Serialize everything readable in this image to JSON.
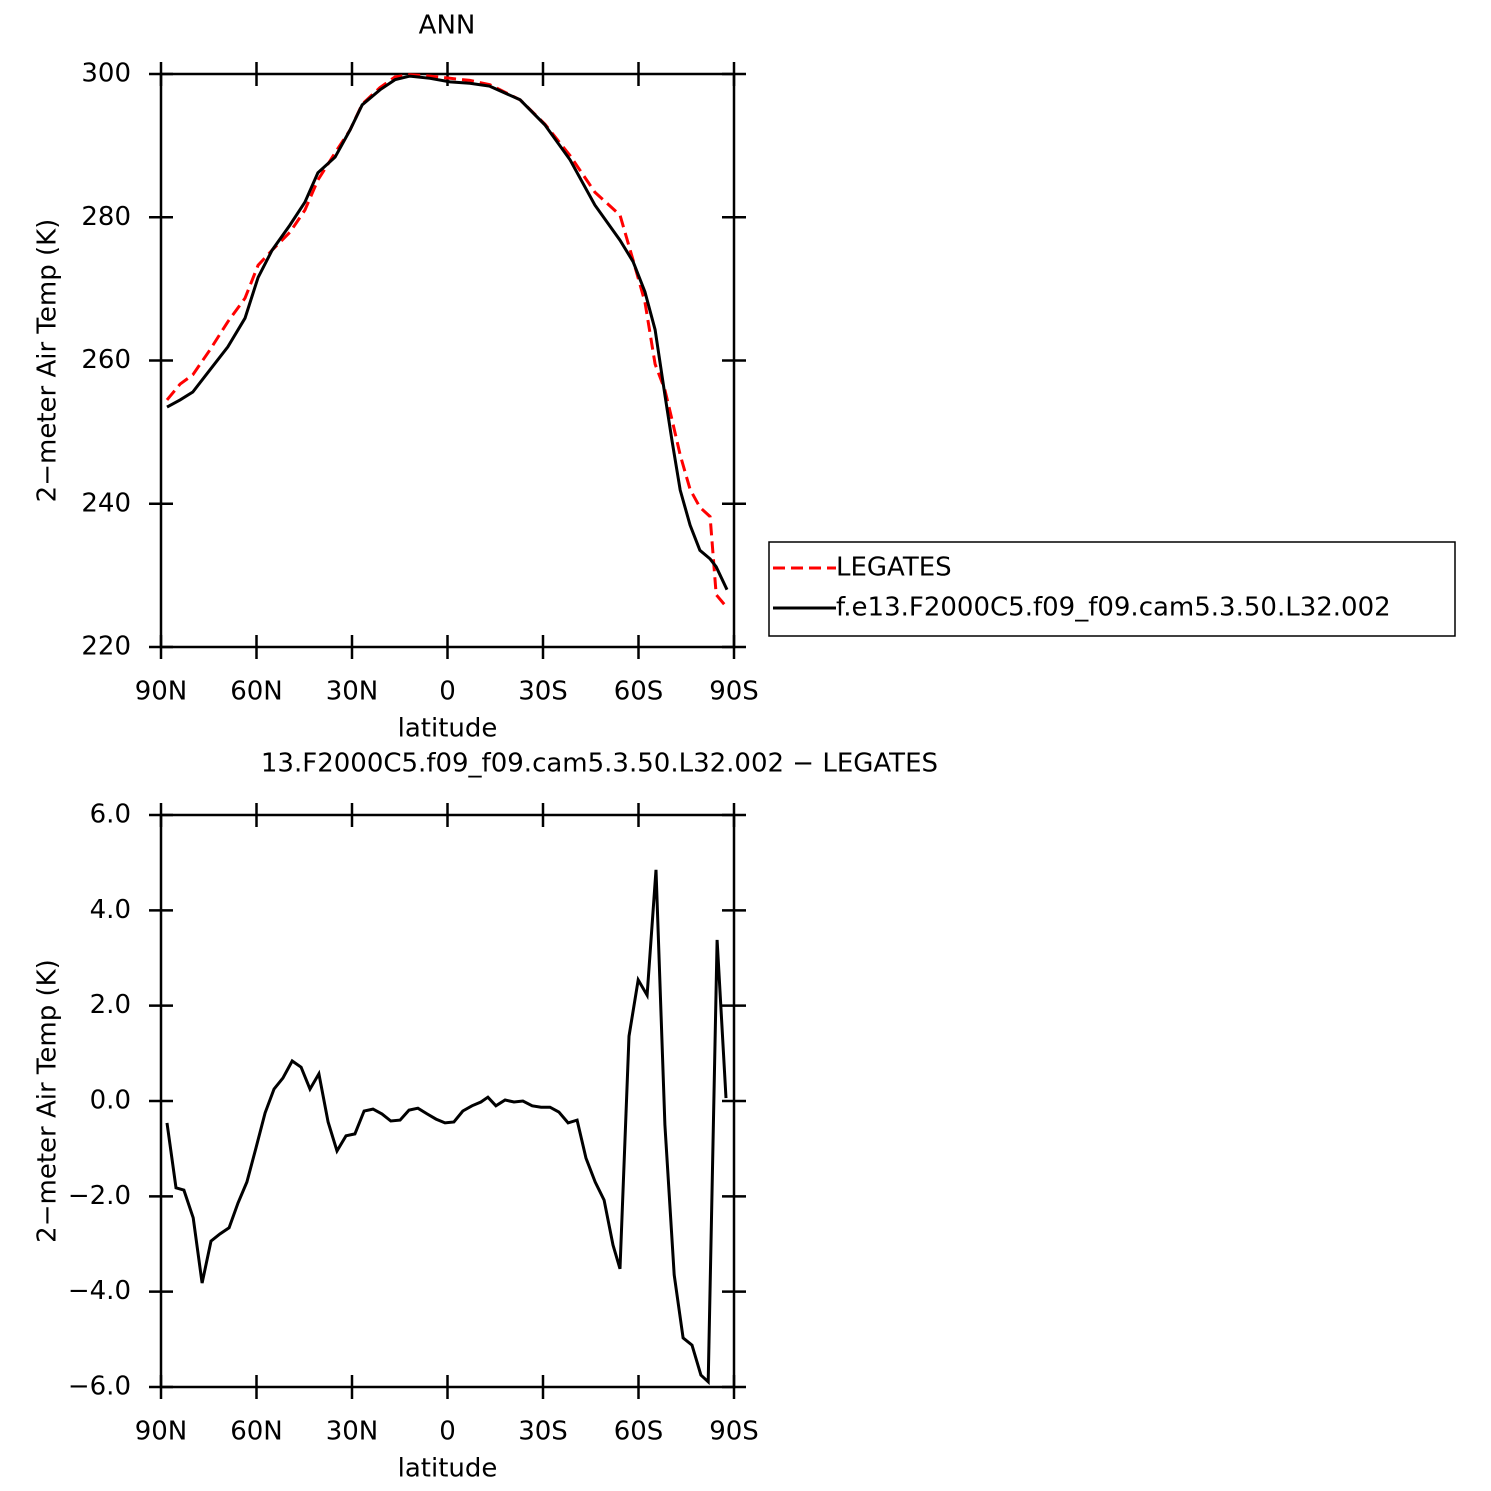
{
  "chart_data": [
    {
      "type": "line",
      "title": "ANN",
      "ylabel": "2−meter Air Temp (K)",
      "xlabel": "latitude",
      "x": [
        88.1,
        84,
        80,
        74.6,
        69,
        63.6,
        59.5,
        55.1,
        49.5,
        44.8,
        40.7,
        35.3,
        30.6,
        26.8,
        21.2,
        16.5,
        11.8,
        5.5,
        -0.8,
        -7,
        -13.3,
        -22.8,
        -30.6,
        -38.5,
        -46.3,
        -54.2,
        -58.3,
        -62,
        -65.2,
        -68.3,
        -70.5,
        -73.1,
        -76.2,
        -79.3,
        -82.5,
        -84.4,
        -87.8
      ],
      "series": [
        {
          "name": "LEGATES",
          "color": "#ff0000",
          "dash": true,
          "values": [
            254.5,
            256.7,
            258,
            261.5,
            265.4,
            268.7,
            273.3,
            275.4,
            277.9,
            281,
            285.2,
            289,
            292.2,
            295.8,
            298.1,
            299.6,
            299.9,
            299.7,
            299.4,
            299.1,
            298.5,
            296.4,
            293,
            288.6,
            283.5,
            280.3,
            274,
            268.2,
            259.5,
            255.9,
            251.8,
            246.8,
            242,
            239.5,
            238.2,
            227.3,
            225.5
          ]
        },
        {
          "name": "f.e13.F2000C5.f09_f09.cam5.3.50.L32.002",
          "color": "#000000",
          "dash": false,
          "values": [
            253.5,
            254.5,
            255.6,
            258.7,
            261.9,
            265.9,
            271.6,
            275.4,
            278.9,
            282.1,
            286.2,
            288.4,
            292.2,
            295.7,
            297.8,
            299.2,
            299.7,
            299.4,
            298.9,
            298.7,
            298.3,
            296.4,
            292.9,
            288,
            281.7,
            276.8,
            273.8,
            269.6,
            264.3,
            255.2,
            248.9,
            241.9,
            237,
            233.5,
            232.3,
            231.2,
            228
          ]
        }
      ],
      "xlim": [
        90,
        -90
      ],
      "xticks": [
        {
          "value": 90,
          "label": "90N"
        },
        {
          "value": 60,
          "label": "60N"
        },
        {
          "value": 30,
          "label": "30N"
        },
        0,
        {
          "value": -30,
          "label": "30S"
        },
        {
          "value": -60,
          "label": "60S"
        },
        {
          "value": -90,
          "label": "90S"
        }
      ],
      "ylim": [
        220,
        300
      ],
      "yticks": [
        220,
        240,
        260,
        280,
        300
      ],
      "legend": "right"
    },
    {
      "type": "line",
      "title": "13.F2000C5.f09_f09.cam5.3.50.L32.002 − LEGATES",
      "ylabel": "2−meter Air Temp (K)",
      "xlabel": "latitude",
      "x": [
        88.1,
        85.3,
        82.8,
        79.9,
        77.1,
        74.3,
        71.5,
        68.6,
        65.8,
        63,
        60.2,
        57.3,
        54.5,
        51.7,
        48.8,
        46,
        43.2,
        40.4,
        37.5,
        34.7,
        31.9,
        29.1,
        26.2,
        23.4,
        20.6,
        17.8,
        14.9,
        12.1,
        9.3,
        6.4,
        3.6,
        0.8,
        -2,
        -4.8,
        -7.7,
        -10.5,
        -12.7,
        -15.2,
        -18.1,
        -20.9,
        -23.7,
        -26.6,
        -29.4,
        -32.2,
        -35,
        -37.9,
        -40.7,
        -43.5,
        -46.4,
        -49.2,
        -52,
        -54.2,
        -57,
        -59.9,
        -62.7,
        -65.5,
        -68.3,
        -71.2,
        -74,
        -76.8,
        -79.6,
        -81.9,
        -84.7,
        -87.5
      ],
      "series": [
        {
          "color": "#000000",
          "dash": false,
          "values": [
            -0.46,
            -1.82,
            -1.87,
            -2.45,
            -3.82,
            -2.94,
            -2.79,
            -2.66,
            -2.14,
            -1.7,
            -0.99,
            -0.25,
            0.25,
            0.48,
            0.84,
            0.71,
            0.25,
            0.57,
            -0.44,
            -1.05,
            -0.73,
            -0.69,
            -0.21,
            -0.17,
            -0.27,
            -0.42,
            -0.4,
            -0.19,
            -0.15,
            -0.27,
            -0.38,
            -0.46,
            -0.44,
            -0.21,
            -0.1,
            -0.02,
            0.08,
            -0.1,
            0.02,
            -0.02,
            0,
            -0.1,
            -0.13,
            -0.13,
            -0.23,
            -0.46,
            -0.4,
            -1.2,
            -1.7,
            -2.08,
            -3.02,
            -3.52,
            1.36,
            2.54,
            2.22,
            4.85,
            -0.5,
            -3.65,
            -4.97,
            -5.12,
            -5.75,
            -5.89,
            3.38,
            0.06
          ]
        }
      ],
      "xlim": [
        90,
        -90
      ],
      "xticks": [
        {
          "value": 90,
          "label": "90N"
        },
        {
          "value": 60,
          "label": "60N"
        },
        {
          "value": 30,
          "label": "30N"
        },
        0,
        {
          "value": -30,
          "label": "30S"
        },
        {
          "value": -60,
          "label": "60S"
        },
        {
          "value": -90,
          "label": "90S"
        }
      ],
      "ylim": [
        -6,
        6
      ],
      "yticks": [
        {
          "value": -6,
          "label": "−6.0"
        },
        {
          "value": -4,
          "label": "−4.0"
        },
        {
          "value": -2,
          "label": "−2.0"
        },
        {
          "value": 0,
          "label": "0.0"
        },
        {
          "value": 2,
          "label": "2.0"
        },
        {
          "value": 4,
          "label": "4.0"
        },
        {
          "value": 6,
          "label": "6.0"
        }
      ]
    }
  ]
}
